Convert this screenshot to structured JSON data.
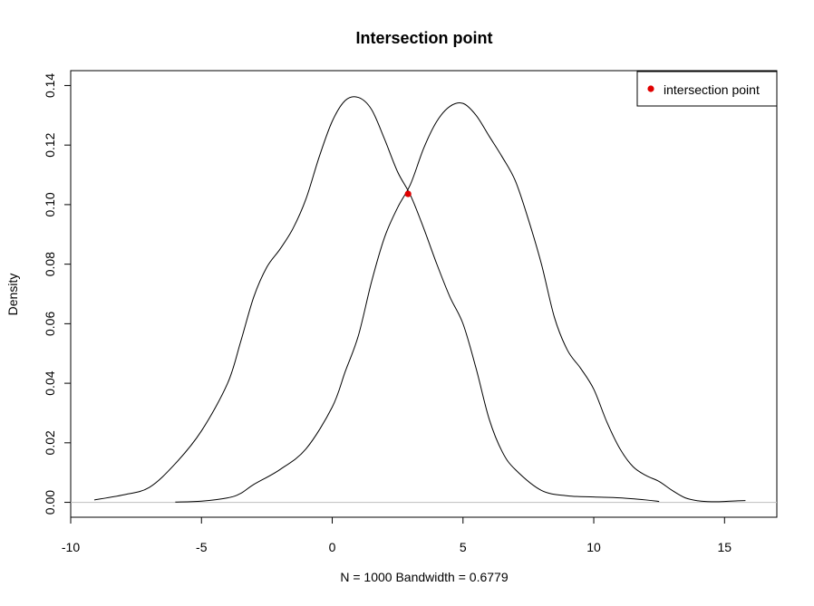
{
  "chart_data": {
    "type": "line",
    "title": "Intersection point",
    "xlabel": "N = 1000   Bandwidth = 0.6779",
    "ylabel": "Density",
    "xlim": [
      -10,
      17
    ],
    "ylim": [
      -0.005,
      0.145
    ],
    "x_ticks": [
      -10,
      -5,
      0,
      5,
      10,
      15
    ],
    "y_ticks": [
      0.0,
      0.02,
      0.04,
      0.06,
      0.08,
      0.1,
      0.12,
      0.14
    ],
    "x_tick_labels": [
      "-10",
      "-5",
      "0",
      "5",
      "10",
      "15"
    ],
    "y_tick_labels": [
      "0.00",
      "0.02",
      "0.04",
      "0.06",
      "0.08",
      "0.10",
      "0.12",
      "0.14"
    ],
    "baseline": 0,
    "grid": false,
    "series": [
      {
        "x": [
          -9.1,
          -8.0,
          -7.0,
          -6.0,
          -5.0,
          -4.0,
          -3.5,
          -3.0,
          -2.5,
          -2.0,
          -1.5,
          -1.0,
          -0.5,
          0.0,
          0.5,
          1.0,
          1.5,
          2.0,
          2.5,
          3.0,
          3.5,
          4.0,
          4.5,
          5.0,
          5.5,
          6.0,
          6.5,
          7.0,
          8.0,
          9.0,
          10.0,
          11.0,
          12.0,
          12.5
        ],
        "y": [
          0.0008,
          0.0025,
          0.005,
          0.013,
          0.024,
          0.04,
          0.054,
          0.069,
          0.079,
          0.085,
          0.092,
          0.102,
          0.116,
          0.128,
          0.135,
          0.136,
          0.132,
          0.122,
          0.111,
          0.103,
          0.092,
          0.08,
          0.069,
          0.06,
          0.045,
          0.028,
          0.017,
          0.011,
          0.004,
          0.0022,
          0.0018,
          0.0015,
          0.0008,
          0.0003
        ]
      },
      {
        "x": [
          -6.0,
          -5.0,
          -4.0,
          -3.5,
          -3.0,
          -2.0,
          -1.0,
          0.0,
          0.5,
          1.0,
          1.5,
          2.0,
          2.5,
          3.0,
          3.5,
          4.0,
          4.5,
          5.0,
          5.5,
          6.0,
          6.5,
          7.0,
          7.5,
          8.0,
          8.5,
          9.0,
          9.5,
          10.0,
          10.5,
          11.0,
          11.5,
          12.0,
          12.5,
          13.0,
          13.5,
          14.0,
          14.5,
          15.0,
          15.5,
          15.8
        ],
        "y": [
          0.0001,
          0.0004,
          0.0015,
          0.003,
          0.006,
          0.011,
          0.018,
          0.032,
          0.044,
          0.056,
          0.074,
          0.089,
          0.099,
          0.107,
          0.119,
          0.128,
          0.133,
          0.134,
          0.13,
          0.123,
          0.116,
          0.108,
          0.095,
          0.08,
          0.062,
          0.051,
          0.045,
          0.038,
          0.027,
          0.018,
          0.012,
          0.009,
          0.007,
          0.004,
          0.0015,
          0.0005,
          0.0002,
          0.0003,
          0.0005,
          0.0006
        ]
      }
    ],
    "points": [
      {
        "name": "intersection point",
        "x": 2.9,
        "y": 0.1036,
        "color": "#e00000"
      }
    ],
    "legend": {
      "position": "top-right",
      "entries": [
        {
          "label": "intersection point",
          "marker": "filled-circle",
          "color": "#e00000"
        }
      ]
    }
  }
}
